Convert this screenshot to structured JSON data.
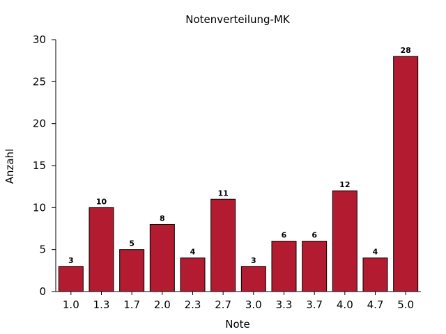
{
  "chart_data": {
    "type": "bar",
    "title": "Notenverteilung-MK",
    "xlabel": "Note",
    "ylabel": "Anzahl",
    "categories": [
      "1.0",
      "1.3",
      "1.7",
      "2.0",
      "2.3",
      "2.7",
      "3.0",
      "3.3",
      "3.7",
      "4.0",
      "4.7",
      "5.0"
    ],
    "values": [
      3,
      10,
      5,
      8,
      4,
      11,
      3,
      6,
      6,
      12,
      4,
      28
    ],
    "ylim": [
      0,
      30
    ],
    "yticks": [
      0,
      5,
      10,
      15,
      20,
      25,
      30
    ],
    "bar_color": "#b31b30",
    "grid": false,
    "legend": "none"
  }
}
